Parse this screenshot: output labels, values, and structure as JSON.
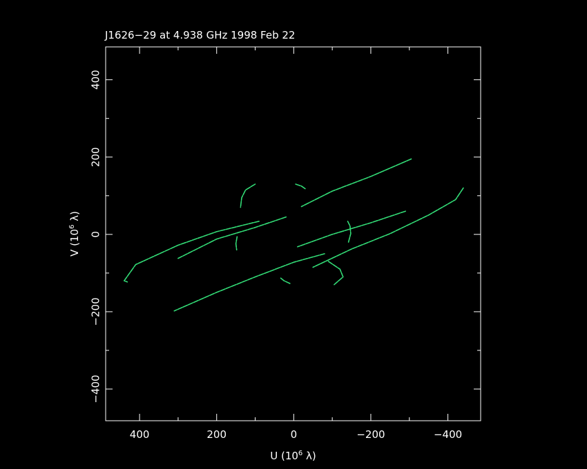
{
  "chart_data": {
    "type": "scatter",
    "title": "J1626−29 at 4.938 GHz 1998 Feb 22",
    "xlabel": {
      "main": "U (10",
      "sup": "6",
      "unit": " λ)"
    },
    "ylabel": {
      "main": "V (10",
      "sup": "6",
      "unit": " λ)"
    },
    "xlim": [
      488,
      -485
    ],
    "ylim": [
      -482,
      485
    ],
    "x_reversed": true,
    "grid": false,
    "x_ticks": [
      400,
      200,
      0,
      -200,
      -400
    ],
    "x_tick_labels": [
      "400",
      "200",
      "0",
      "−200",
      "−400"
    ],
    "y_ticks": [
      400,
      200,
      0,
      -200,
      -400
    ],
    "y_tick_labels": [
      "400",
      "200",
      "0",
      "−200",
      "−400"
    ],
    "minor_tick_step": 100,
    "colors": {
      "background": "#000000",
      "frame": "#ffffff",
      "tracks": "#33dd77"
    },
    "series": [
      {
        "points": [
          [
            -305,
            195
          ],
          [
            -200,
            150
          ],
          [
            -100,
            112
          ],
          [
            -20,
            72
          ]
        ]
      },
      {
        "points": [
          [
            20,
            45
          ],
          [
            100,
            18
          ],
          [
            200,
            -12
          ],
          [
            300,
            -62
          ]
        ]
      },
      {
        "points": [
          [
            -440,
            120
          ],
          [
            -420,
            90
          ],
          [
            -350,
            50
          ],
          [
            -250,
            2
          ],
          [
            -150,
            -38
          ],
          [
            -50,
            -85
          ]
        ]
      },
      {
        "points": [
          [
            -80,
            -50
          ],
          [
            0,
            -72
          ],
          [
            100,
            -110
          ],
          [
            200,
            -150
          ],
          [
            310,
            -198
          ]
        ]
      },
      {
        "points": [
          [
            -290,
            60
          ],
          [
            -200,
            30
          ],
          [
            -100,
            0
          ],
          [
            -10,
            -32
          ]
        ]
      },
      {
        "points": [
          [
            90,
            34
          ],
          [
            200,
            7
          ],
          [
            300,
            -28
          ],
          [
            410,
            -78
          ],
          [
            440,
            -120
          ],
          [
            432,
            -123
          ]
        ]
      },
      {
        "points": [
          [
            -142,
            -20
          ],
          [
            -148,
            2
          ],
          [
            -146,
            22
          ],
          [
            -140,
            34
          ]
        ]
      },
      {
        "points": [
          [
            147,
            -6
          ],
          [
            150,
            -24
          ],
          [
            148,
            -40
          ]
        ]
      },
      {
        "points": [
          [
            100,
            130
          ],
          [
            125,
            115
          ],
          [
            135,
            95
          ],
          [
            138,
            70
          ]
        ]
      },
      {
        "points": [
          [
            -5,
            130
          ],
          [
            -20,
            125
          ],
          [
            -30,
            118
          ]
        ]
      },
      {
        "points": [
          [
            -90,
            -70
          ],
          [
            -120,
            -90
          ],
          [
            -128,
            -110
          ],
          [
            -105,
            -130
          ]
        ]
      },
      {
        "points": [
          [
            10,
            -127
          ],
          [
            25,
            -120
          ],
          [
            35,
            -112
          ]
        ]
      }
    ]
  }
}
